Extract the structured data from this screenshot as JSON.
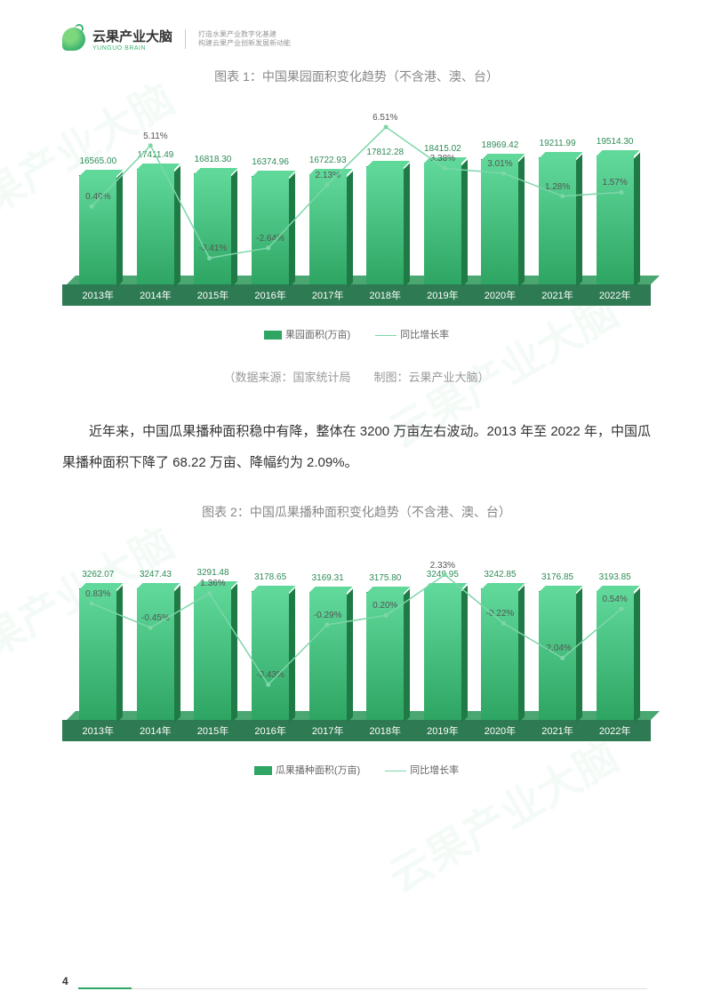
{
  "logo": {
    "name": "云果产业大脑",
    "sub": "YUNGUO BRAIN",
    "slogan1": "打造水果产业数字化基建",
    "slogan2": "构建云果产业创新发展新动能"
  },
  "chart1": {
    "title": "图表 1：中国果园面积变化趋势（不含港、澳、台）",
    "type": "bar+line",
    "categories": [
      "2013年",
      "2014年",
      "2015年",
      "2016年",
      "2017年",
      "2018年",
      "2019年",
      "2020年",
      "2021年",
      "2022年"
    ],
    "bar_values": [
      16565.0,
      17411.49,
      16818.3,
      16374.96,
      16722.93,
      17812.28,
      18415.02,
      18969.42,
      19211.99,
      19514.3
    ],
    "bar_value_labels": [
      "16565.00",
      "17411.49",
      "16818.30",
      "16374.96",
      "16722.93",
      "17812.28",
      "18415.02",
      "18969.42",
      "19211.99",
      "19514.30"
    ],
    "pct_values": [
      0.49,
      5.11,
      -3.41,
      -2.64,
      2.13,
      6.51,
      3.38,
      3.01,
      1.28,
      1.57
    ],
    "pct_labels": [
      "0.49%",
      "5.11%",
      "-3.41%",
      "-2.64%",
      "2.13%",
      "6.51%",
      "3.38%",
      "3.01%",
      "1.28%",
      "1.57%"
    ],
    "bar_color": "#2ea562",
    "bar_top_color": "#5fd89a",
    "bar_side_color": "#1f7a45",
    "line_color": "#7dd6a8",
    "base_color": "#2e7a52",
    "y_bar_max": 22000,
    "pct_min": -5,
    "pct_max": 8,
    "legend_bar": "果园面积(万亩)",
    "legend_line": "同比增长率"
  },
  "source_line": "（数据来源：国家统计局　　制图：云果产业大脑）",
  "body_para": "近年来，中国瓜果播种面积稳中有降，整体在 3200 万亩左右波动。2013 年至 2022 年，中国瓜果播种面积下降了 68.22 万亩、降幅约为 2.09%。",
  "chart2": {
    "title": "图表 2：中国瓜果播种面积变化趋势（不含港、澳、台）",
    "type": "bar+line",
    "categories": [
      "2013年",
      "2014年",
      "2015年",
      "2016年",
      "2017年",
      "2018年",
      "2019年",
      "2020年",
      "2021年",
      "2022年"
    ],
    "bar_values": [
      3262.07,
      3247.43,
      3291.48,
      3178.65,
      3169.31,
      3175.8,
      3249.95,
      3242.85,
      3176.85,
      3193.85
    ],
    "bar_value_labels": [
      "3262.07",
      "3247.43",
      "3291.48",
      "3178.65",
      "3169.31",
      "3175.80",
      "3249.95",
      "3242.85",
      "3176.85",
      "3193.85"
    ],
    "pct_values": [
      0.83,
      -0.45,
      1.36,
      -3.43,
      -0.29,
      0.2,
      2.33,
      -0.22,
      -2.04,
      0.54
    ],
    "pct_labels": [
      "0.83%",
      "-0.45%",
      "1.36%",
      "-3.43%",
      "-0.29%",
      "0.20%",
      "2.33%",
      "-0.22%",
      "-2.04%",
      "0.54%"
    ],
    "bar_color": "#2ea562",
    "bar_top_color": "#5fd89a",
    "bar_side_color": "#1f7a45",
    "line_color": "#7dd6a8",
    "base_color": "#2e7a52",
    "y_bar_max": 3600,
    "pct_min": -5,
    "pct_max": 4,
    "legend_bar": "瓜果播种面积(万亩)",
    "legend_line": "同比增长率"
  },
  "page_number": "4",
  "watermark_text": "云果产业大脑",
  "colors": {
    "text_body": "#333333",
    "text_muted": "#888888",
    "text_light": "#999999",
    "bar_label": "#2e8b57",
    "background": "#ffffff"
  }
}
